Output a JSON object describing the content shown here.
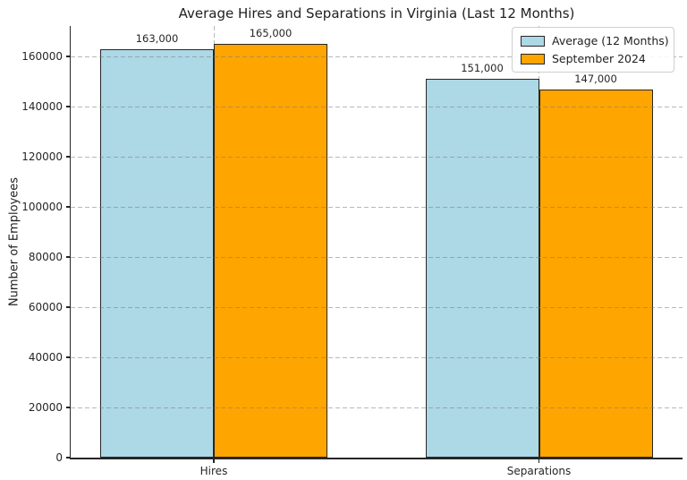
{
  "chart_data": {
    "type": "bar",
    "title": "Average Hires and Separations in Virginia (Last 12 Months)",
    "ylabel": "Number of Employees",
    "xlabel": "",
    "categories": [
      "Hires",
      "Separations"
    ],
    "series": [
      {
        "name": "Average (12 Months)",
        "color": "#ADD8E6",
        "edge_color": "#262626",
        "values": [
          163000,
          151000
        ],
        "labels": [
          "163,000",
          "151,000"
        ]
      },
      {
        "name": "September 2024",
        "color": "#FFA500",
        "edge_color": "#262626",
        "values": [
          165000,
          147000
        ],
        "labels": [
          "165,000",
          "147,000"
        ]
      }
    ],
    "yticks": [
      0,
      20000,
      40000,
      60000,
      80000,
      100000,
      120000,
      140000,
      160000
    ],
    "ylim": [
      0,
      172200
    ],
    "grid": true,
    "grid_style": "dashed",
    "legend_position": "upper right",
    "background": "#ffffff"
  }
}
